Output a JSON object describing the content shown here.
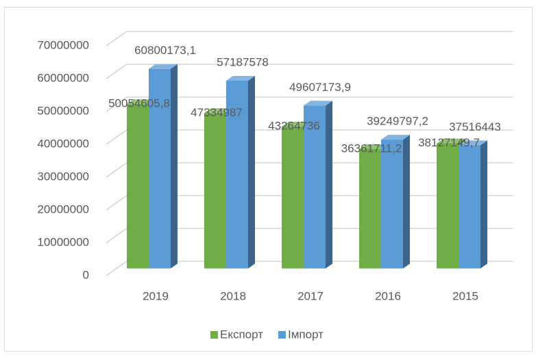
{
  "chart_data": {
    "type": "bar3d",
    "categories": [
      "2019",
      "2018",
      "2017",
      "2016",
      "2015"
    ],
    "series": [
      {
        "name": "Експорт",
        "color": "#70ad47",
        "values": [
          50054605.8,
          47334987,
          43264736,
          36361711.2,
          38127149.7
        ],
        "value_labels": [
          "50054605,8",
          "47334987",
          "43264736",
          "36361711,2",
          "38127149,7"
        ]
      },
      {
        "name": "Імпорт",
        "color": "#5b9bd5",
        "values": [
          60800173.1,
          57187578,
          49607173.9,
          39249797.2,
          37516443
        ],
        "value_labels": [
          "60800173,1",
          "57187578",
          "49607173,9",
          "39249797,2",
          "37516443"
        ]
      }
    ],
    "ylim": [
      0,
      70000000
    ],
    "yticks": [
      0,
      10000000,
      20000000,
      30000000,
      40000000,
      50000000,
      60000000,
      70000000
    ],
    "grid": true,
    "legend": "bottom"
  }
}
